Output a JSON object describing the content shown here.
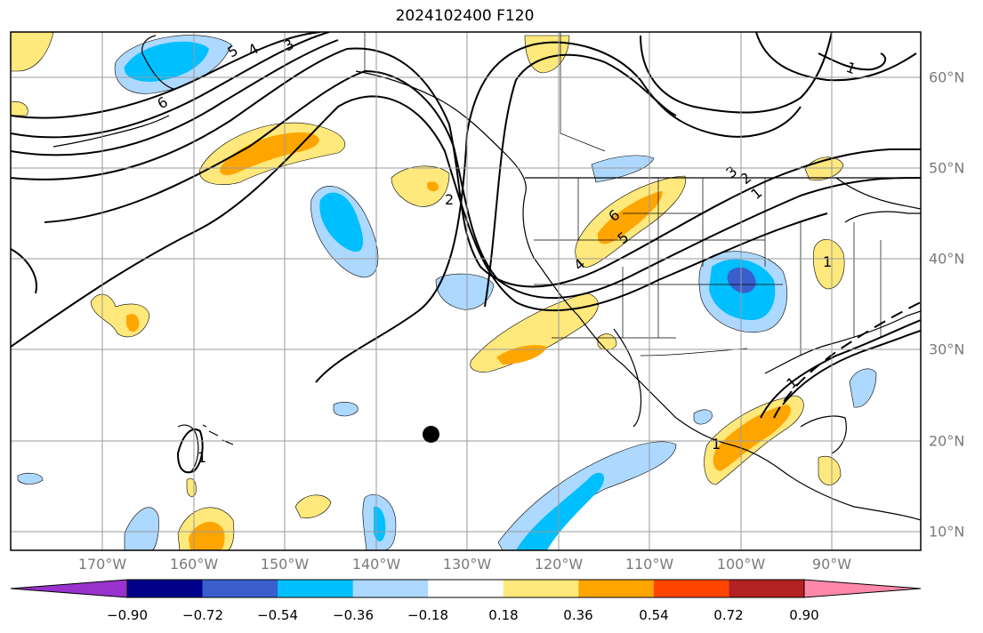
{
  "title": "2024102400 F120",
  "map": {
    "lon_labels": [
      "170°W",
      "160°W",
      "150°W",
      "140°W",
      "130°W",
      "120°W",
      "110°W",
      "100°W",
      "90°W"
    ],
    "lat_labels": [
      "60°N",
      "50°N",
      "40°N",
      "30°N",
      "20°N",
      "10°N"
    ],
    "contour_labels": [
      "6",
      "5",
      "4",
      "3",
      "2",
      "1",
      "6",
      "5",
      "4",
      "3",
      "2",
      "1",
      "1",
      "1",
      "1",
      "1"
    ],
    "marker": "storm-center"
  },
  "colorbar": {
    "tick_labels": [
      "−0.90",
      "−0.72",
      "−0.54",
      "−0.36",
      "−0.18",
      "0.18",
      "0.36",
      "0.54",
      "0.72",
      "0.90"
    ],
    "colors": [
      "#9932cc",
      "#00008b",
      "#3a5fcd",
      "#00bfff",
      "#add8ff",
      "#ffffff",
      "#ffe87c",
      "#ffa500",
      "#ff4500",
      "#b22222",
      "#ff88aa"
    ]
  }
}
